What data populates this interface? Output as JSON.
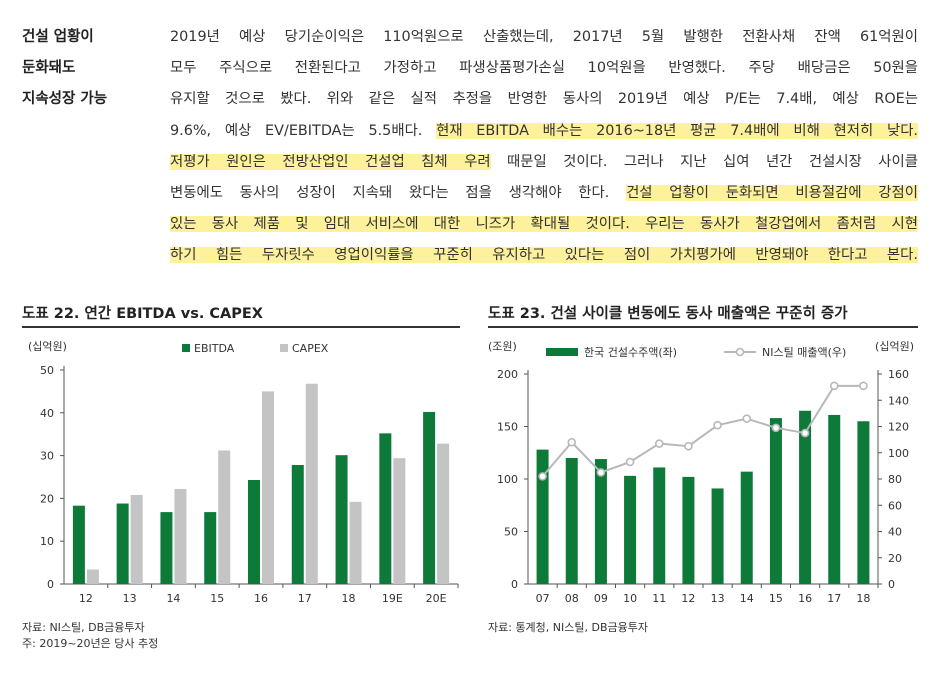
{
  "sidebar": {
    "lines": [
      "건설 업황이",
      "둔화돼도",
      "지속성장 가능"
    ]
  },
  "paragraph": {
    "lines": [
      [
        {
          "t": "2019년 예상 당기순이익은 110억원으로 산출했는데, 2017년 5월 발행한 전환사채 잔액 61억원이",
          "h": false
        }
      ],
      [
        {
          "t": "모두 주식으로 전환된다고 가정하고 파생상품평가손실 10억원을 반영했다. 주당 배당금은 50원을",
          "h": false
        }
      ],
      [
        {
          "t": "유지할 것으로 봤다. 위와 같은 실적 추정을 반영한 동사의 2019년 예상 P/E는 7.4배, 예상 ROE는",
          "h": false
        }
      ],
      [
        {
          "t": "9.6%, 예상 EV/EBITDA는 5.5배다. ",
          "h": false
        },
        {
          "t": "현재 EBITDA 배수는 2016~18년 평균 7.4배에 비해 현저히 낮다.",
          "h": true
        }
      ],
      [
        {
          "t": "저평가 원인은 전방산업인 건설업 침체 우려",
          "h": true
        },
        {
          "t": " 때문일 것이다. 그러나 지난 십여 년간 건설시장 사이클",
          "h": false
        }
      ],
      [
        {
          "t": "변동에도 동사의 성장이 지속돼 왔다는 점을 생각해야 한다. ",
          "h": false
        },
        {
          "t": "건설 업황이 둔화되면 비용절감에 강점이",
          "h": true
        }
      ],
      [
        {
          "t": "있는 동사 제품 및 임대 서비스에 대한 니즈가 확대될 것이다. 우리는 동사가 철강업에서 좀처럼 시현",
          "h": true
        }
      ],
      [
        {
          "t": "하기 힘든 두자릿수 영업이익률을 꾸준히 유지하고 있다는 점이 가치평가에 반영돼야 한다고 본다.",
          "h": true
        }
      ]
    ]
  },
  "figure22": {
    "title": "도표 22. 연간 EBITDA vs. CAPEX",
    "source_lines": [
      "자료: NI스틸, DB금융투자",
      "주: 2019~20년은 당사 추정"
    ]
  },
  "figure23": {
    "title": "도표 23. 건설 사이클 변동에도 동사 매출액은 꾸준히 증가",
    "source_lines": [
      "자료: 통계청, NI스틸, DB금융투자"
    ]
  },
  "colors": {
    "green": "#0d7a3a",
    "gray": "#c4c4c4",
    "highlight": "#fdf29b",
    "line": "#b8b8b8"
  },
  "chart_data": [
    {
      "type": "bar",
      "unit_label": "(십억원)",
      "categories": [
        "12",
        "13",
        "14",
        "15",
        "16",
        "17",
        "18",
        "19E",
        "20E"
      ],
      "series": [
        {
          "name": "EBITDA",
          "color": "#0d7a3a",
          "values": [
            18.3,
            18.8,
            16.8,
            16.8,
            24.3,
            27.8,
            30.1,
            35.2,
            40.2
          ]
        },
        {
          "name": "CAPEX",
          "color": "#c4c4c4",
          "values": [
            3.4,
            20.8,
            22.2,
            31.2,
            45.0,
            46.8,
            19.2,
            29.4,
            32.8
          ]
        }
      ],
      "ylim": [
        0,
        50
      ],
      "yticks": [
        0,
        10,
        20,
        30,
        40,
        50
      ],
      "legend": "top"
    },
    {
      "type": "bar",
      "left_unit_label": "(조원)",
      "right_unit_label": "(십억원)",
      "categories": [
        "07",
        "08",
        "09",
        "10",
        "11",
        "12",
        "13",
        "14",
        "15",
        "16",
        "17",
        "18"
      ],
      "series": [
        {
          "name": "한국 건설수주액(좌)",
          "color": "#0d7a3a",
          "axis": "left",
          "type": "bar",
          "values": [
            128,
            120,
            119,
            103,
            111,
            102,
            91,
            107,
            158,
            165,
            161,
            155
          ]
        },
        {
          "name": "NI스틸 매출액(우)",
          "color": "#b8b8b8",
          "axis": "right",
          "type": "line",
          "values": [
            82,
            108,
            85,
            93,
            107,
            105,
            121,
            126,
            119,
            115,
            151,
            151
          ]
        }
      ],
      "ylim_left": [
        0,
        200
      ],
      "yticks_left": [
        0,
        50,
        100,
        150,
        200
      ],
      "ylim_right": [
        0,
        160
      ],
      "yticks_right": [
        0,
        20,
        40,
        60,
        80,
        100,
        120,
        140,
        160
      ],
      "legend": "top"
    }
  ]
}
